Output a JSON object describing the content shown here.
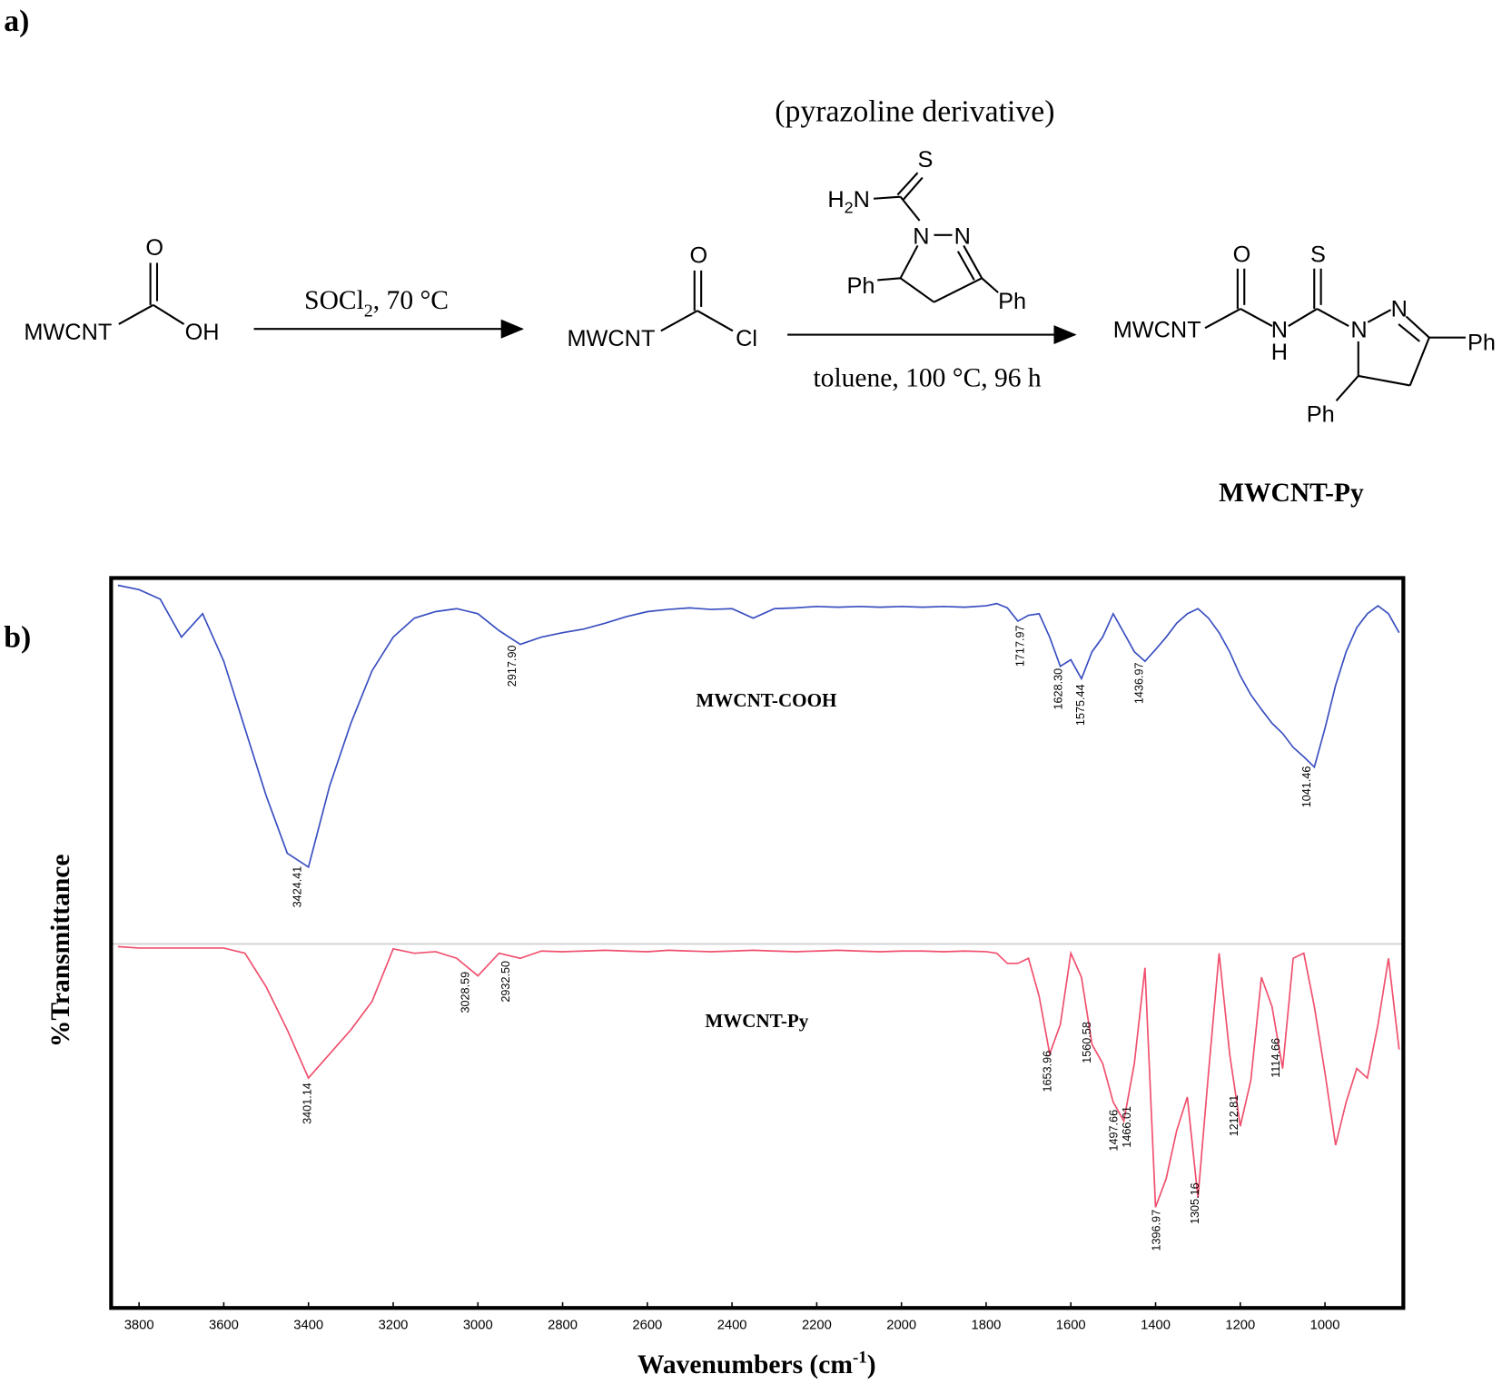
{
  "panels": {
    "a": "a)",
    "b": "b)"
  },
  "scheme": {
    "reactant": {
      "group": "MWCNT",
      "o": "O",
      "oh": "OH"
    },
    "step1": {
      "reagent": "SOCl",
      "sub": "2",
      "conditions": ", 70 °C"
    },
    "intermediate": {
      "group": "MWCNT",
      "o": "O",
      "cl": "Cl"
    },
    "step2": {
      "caption": "(pyrazoline derivative)",
      "s": "S",
      "h": "H",
      "h_sub": "2",
      "n_amine": "N",
      "n1": "N",
      "n2": "N",
      "ph1": "Ph",
      "ph2": "Ph",
      "conditions": "toluene, 100 °C, 96 h"
    },
    "product": {
      "group": "MWCNT",
      "o": "O",
      "s": "S",
      "nh_n": "N",
      "nh_h": "H",
      "n1": "N",
      "n2": "N",
      "ph1": "Ph",
      "ph2": "Ph",
      "name": "MWCNT-Py"
    }
  },
  "chart_data": {
    "type": "line",
    "y_label": "%Transmittance",
    "x_label": {
      "text": "Wavenumbers (cm",
      "sup": "-1",
      "close": ")"
    },
    "xlim": [
      3866,
      815
    ],
    "ylim": [
      0,
      100
    ],
    "xticks": [
      3800,
      3600,
      3400,
      3200,
      3000,
      2800,
      2600,
      2400,
      2200,
      2000,
      1800,
      1600,
      1400,
      1200,
      1000
    ],
    "x": [
      3850,
      3800,
      3750,
      3700,
      3650,
      3600,
      3550,
      3500,
      3450,
      3400,
      3350,
      3300,
      3250,
      3200,
      3150,
      3100,
      3050,
      3000,
      2950,
      2900,
      2850,
      2800,
      2750,
      2700,
      2650,
      2600,
      2550,
      2500,
      2450,
      2400,
      2350,
      2300,
      2250,
      2200,
      2150,
      2100,
      2050,
      2000,
      1950,
      1900,
      1850,
      1800,
      1775,
      1750,
      1725,
      1700,
      1675,
      1650,
      1625,
      1600,
      1575,
      1550,
      1525,
      1500,
      1475,
      1450,
      1425,
      1400,
      1375,
      1350,
      1325,
      1300,
      1275,
      1250,
      1225,
      1200,
      1175,
      1150,
      1125,
      1100,
      1075,
      1050,
      1025,
      1000,
      975,
      950,
      925,
      900,
      875,
      850,
      825
    ],
    "series": [
      {
        "name": "MWCNT-COOH",
        "color": "#3a4fc0",
        "values": [
          99,
          98.4,
          97.1,
          91.9,
          95.1,
          88.6,
          79.4,
          70.2,
          62.3,
          60.4,
          71.5,
          80.1,
          87.3,
          91.9,
          94.5,
          95.4,
          95.8,
          95.1,
          92.8,
          90.9,
          91.9,
          92.5,
          93.0,
          93.8,
          94.7,
          95.4,
          95.7,
          95.9,
          95.7,
          95.8,
          94.5,
          95.8,
          95.9,
          96.1,
          96.0,
          96.1,
          96.0,
          96.1,
          96.0,
          96.1,
          96.0,
          96.2,
          96.5,
          95.9,
          94.1,
          94.9,
          95.1,
          91.9,
          87.9,
          88.8,
          86.2,
          89.9,
          91.9,
          95.1,
          92.5,
          89.9,
          88.6,
          90.2,
          91.9,
          93.8,
          95.1,
          95.8,
          94.5,
          92.5,
          89.9,
          86.6,
          84.0,
          82.0,
          80.1,
          78.7,
          76.8,
          75.5,
          74.1,
          79.4,
          85.3,
          89.9,
          93.2,
          95.1,
          96.2,
          95.1,
          92.5
        ],
        "peaks": [
          {
            "value": 3424.41,
            "label": "3424.41"
          },
          {
            "value": 2917.9,
            "label": "2917.90"
          },
          {
            "value": 1717.97,
            "label": "1717.97"
          },
          {
            "value": 1628.3,
            "label": "1628.30"
          },
          {
            "value": 1575.44,
            "label": "1575.44"
          },
          {
            "value": 1436.97,
            "label": "1436.97"
          },
          {
            "value": 1041.46,
            "label": "1041.46"
          }
        ]
      },
      {
        "name": "MWCNT-Py",
        "color": "#f0506e",
        "values": [
          49.5,
          49.3,
          49.3,
          49.3,
          49.3,
          49.3,
          48.6,
          44.0,
          38.1,
          31.5,
          34.8,
          38.1,
          42.0,
          49.2,
          48.6,
          48.8,
          47.9,
          45.5,
          48.6,
          47.9,
          48.9,
          48.8,
          48.9,
          49.0,
          48.9,
          48.8,
          49.0,
          48.9,
          48.8,
          48.9,
          49.0,
          48.9,
          48.8,
          48.9,
          49.0,
          48.9,
          48.8,
          48.9,
          48.9,
          48.8,
          48.9,
          48.8,
          48.6,
          47.2,
          47.2,
          47.9,
          42.7,
          34.8,
          38.8,
          48.6,
          45.3,
          36.1,
          33.5,
          28.2,
          25.6,
          33.5,
          46.6,
          13.8,
          17.7,
          24.3,
          28.9,
          15.1,
          32.2,
          48.6,
          34.8,
          24.9,
          31.2,
          45.3,
          41.3,
          32.8,
          47.9,
          48.6,
          41.3,
          32.2,
          22.3,
          28.2,
          32.8,
          31.5,
          38.8,
          47.9,
          35.4
        ],
        "peaks": [
          {
            "value": 3401.14,
            "label": "3401.14"
          },
          {
            "value": 3028.59,
            "label": "3028.59"
          },
          {
            "value": 2932.5,
            "label": "2932.50"
          },
          {
            "value": 1653.96,
            "label": "1653.96"
          },
          {
            "value": 1560.58,
            "label": "1560.58"
          },
          {
            "value": 1497.66,
            "label": "1497.66"
          },
          {
            "value": 1466.01,
            "label": "1466.01"
          },
          {
            "value": 1396.97,
            "label": "1396.97"
          },
          {
            "value": 1305.16,
            "label": "1305.16"
          },
          {
            "value": 1212.81,
            "label": "1212.81"
          },
          {
            "value": 1114.66,
            "label": "1114.66"
          }
        ]
      }
    ]
  }
}
